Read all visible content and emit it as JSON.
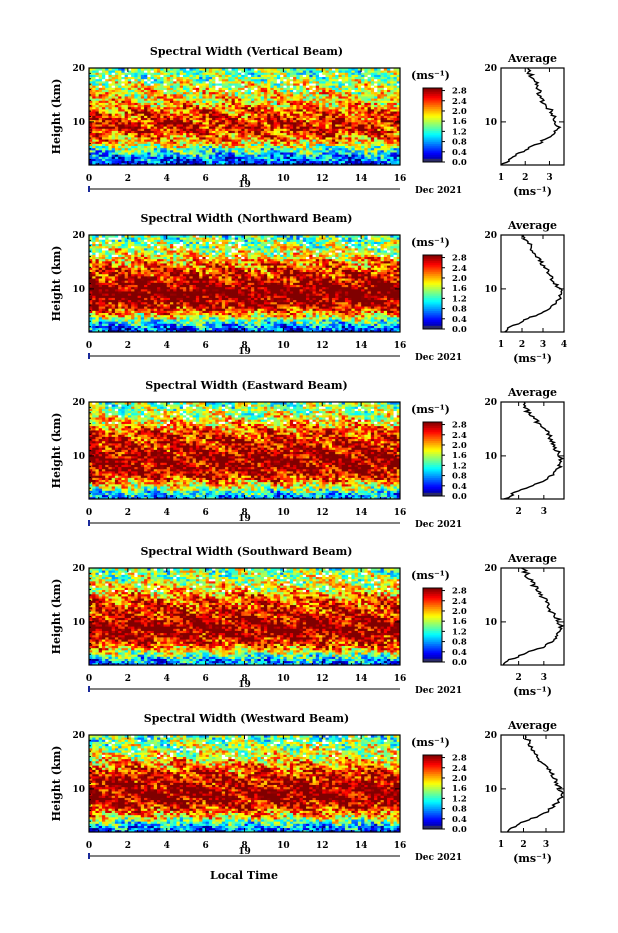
{
  "figure": {
    "xlabel": "Local Time",
    "date_label": "Dec 2021",
    "day_label": "19"
  },
  "chart_data": [
    {
      "type": "heatmap",
      "title": "Spectral Width (Vertical Beam)",
      "ylabel": "Height (km)",
      "xlim": [
        0,
        16
      ],
      "ylim": [
        2,
        20
      ],
      "x_ticks": [
        "0",
        "2",
        "4",
        "6",
        "8",
        "10",
        "12",
        "14",
        "16"
      ],
      "y_ticks": [
        "10",
        "20"
      ],
      "colorbar": {
        "unit": "(ms⁻¹)",
        "range": [
          0,
          2.9
        ],
        "ticks": [
          "2.8",
          "2.4",
          "2.0",
          "1.6",
          "1.2",
          "0.8",
          "0.4",
          "0.0"
        ]
      },
      "profile": {
        "title": "Average",
        "xlabel": "(ms⁻¹)",
        "xlim": [
          1,
          3.6
        ],
        "x_ticks": [
          "1",
          "2",
          "3"
        ],
        "y_ticks": [
          "10",
          "20"
        ],
        "height": [
          2,
          3,
          4,
          5,
          6,
          7,
          8,
          9,
          10,
          11,
          12,
          13,
          14,
          15,
          16,
          17,
          18,
          19,
          20
        ],
        "width": [
          1.0,
          1.35,
          1.7,
          2.1,
          2.6,
          2.9,
          3.2,
          3.35,
          3.3,
          3.2,
          3.1,
          2.8,
          2.7,
          2.6,
          2.55,
          2.5,
          2.3,
          2.2,
          2.1
        ]
      }
    },
    {
      "type": "heatmap",
      "title": "Spectral Width (Northward Beam)",
      "ylabel": "Height (km)",
      "xlim": [
        0,
        16
      ],
      "ylim": [
        2,
        20
      ],
      "x_ticks": [
        "0",
        "2",
        "4",
        "6",
        "8",
        "10",
        "12",
        "14",
        "16"
      ],
      "y_ticks": [
        "10",
        "20"
      ],
      "colorbar": {
        "unit": "(ms⁻¹)",
        "range": [
          0,
          2.9
        ],
        "ticks": [
          "2.8",
          "2.4",
          "2.0",
          "1.6",
          "1.2",
          "0.8",
          "0.4",
          "0.0"
        ]
      },
      "profile": {
        "title": "Average",
        "xlabel": "(ms⁻¹)",
        "xlim": [
          1,
          4
        ],
        "x_ticks": [
          "1",
          "2",
          "3",
          "4"
        ],
        "y_ticks": [
          "10",
          "20"
        ],
        "height": [
          2,
          3,
          4,
          5,
          6,
          7,
          8,
          9,
          10,
          11,
          12,
          13,
          14,
          15,
          16,
          17,
          18,
          19,
          20
        ],
        "width": [
          1.1,
          1.5,
          2.0,
          2.6,
          3.1,
          3.5,
          3.7,
          3.9,
          3.8,
          3.6,
          3.4,
          3.3,
          3.1,
          2.9,
          2.7,
          2.5,
          2.4,
          2.2,
          2.1
        ]
      }
    },
    {
      "type": "heatmap",
      "title": "Spectral Width (Eastward Beam)",
      "ylabel": "Height (km)",
      "xlim": [
        0,
        16
      ],
      "ylim": [
        2,
        20
      ],
      "x_ticks": [
        "0",
        "2",
        "4",
        "6",
        "8",
        "10",
        "12",
        "14",
        "16"
      ],
      "y_ticks": [
        "10",
        "20"
      ],
      "colorbar": {
        "unit": "(ms⁻¹)",
        "range": [
          0,
          2.9
        ],
        "ticks": [
          "2.8",
          "2.4",
          "2.0",
          "1.6",
          "1.2",
          "0.8",
          "0.4",
          "0.0"
        ]
      },
      "profile": {
        "title": "Average",
        "xlabel": "",
        "xlim": [
          1.3,
          3.8
        ],
        "x_ticks": [
          "2",
          "3"
        ],
        "y_ticks": [
          "10",
          "20"
        ],
        "height": [
          2,
          3,
          4,
          5,
          6,
          7,
          8,
          9,
          10,
          11,
          12,
          13,
          14,
          15,
          16,
          17,
          18,
          19,
          20
        ],
        "width": [
          1.4,
          1.8,
          2.3,
          2.8,
          3.2,
          3.5,
          3.6,
          3.7,
          3.6,
          3.5,
          3.4,
          3.3,
          3.2,
          3.0,
          2.8,
          2.6,
          2.4,
          2.3,
          2.2
        ]
      }
    },
    {
      "type": "heatmap",
      "title": "Spectral Width (Southward Beam)",
      "ylabel": "Height (km)",
      "xlim": [
        0,
        16
      ],
      "ylim": [
        2,
        20
      ],
      "x_ticks": [
        "0",
        "2",
        "4",
        "6",
        "8",
        "10",
        "12",
        "14",
        "16"
      ],
      "y_ticks": [
        "10",
        "20"
      ],
      "colorbar": {
        "unit": "(ms⁻¹)",
        "range": [
          0,
          2.9
        ],
        "ticks": [
          "2.8",
          "2.4",
          "2.0",
          "1.6",
          "1.2",
          "0.8",
          "0.4",
          "0.0"
        ]
      },
      "profile": {
        "title": "Average",
        "xlabel": "(ms⁻¹)",
        "xlim": [
          1.3,
          3.8
        ],
        "x_ticks": [
          "2",
          "3"
        ],
        "y_ticks": [
          "10",
          "20"
        ],
        "height": [
          2,
          3,
          4,
          5,
          6,
          7,
          8,
          9,
          10,
          11,
          12,
          13,
          14,
          15,
          16,
          17,
          18,
          19,
          20
        ],
        "width": [
          1.4,
          1.7,
          2.2,
          2.8,
          3.2,
          3.5,
          3.6,
          3.7,
          3.6,
          3.5,
          3.3,
          3.2,
          3.1,
          2.9,
          2.7,
          2.6,
          2.4,
          2.3,
          2.2
        ]
      }
    },
    {
      "type": "heatmap",
      "title": "Spectral Width (Westward Beam)",
      "ylabel": "Height (km)",
      "xlim": [
        0,
        16
      ],
      "ylim": [
        2,
        20
      ],
      "x_ticks": [
        "0",
        "2",
        "4",
        "6",
        "8",
        "10",
        "12",
        "14",
        "16"
      ],
      "y_ticks": [
        "10",
        "20"
      ],
      "colorbar": {
        "unit": "(ms⁻¹)",
        "range": [
          0,
          2.9
        ],
        "ticks": [
          "2.8",
          "2.4",
          "2.0",
          "1.6",
          "1.2",
          "0.8",
          "0.4",
          "0.0"
        ]
      },
      "profile": {
        "title": "Average",
        "xlabel": "(ms⁻¹)",
        "xlim": [
          1,
          3.8
        ],
        "x_ticks": [
          "1",
          "2",
          "3"
        ],
        "y_ticks": [
          "10",
          "20"
        ],
        "height": [
          2,
          3,
          4,
          5,
          6,
          7,
          8,
          9,
          10,
          11,
          12,
          13,
          14,
          15,
          16,
          17,
          18,
          19,
          20
        ],
        "width": [
          1.2,
          1.6,
          2.1,
          2.7,
          3.1,
          3.4,
          3.6,
          3.7,
          3.6,
          3.5,
          3.4,
          3.2,
          3.0,
          2.8,
          2.6,
          2.5,
          2.3,
          2.2,
          2.1
        ]
      }
    }
  ]
}
